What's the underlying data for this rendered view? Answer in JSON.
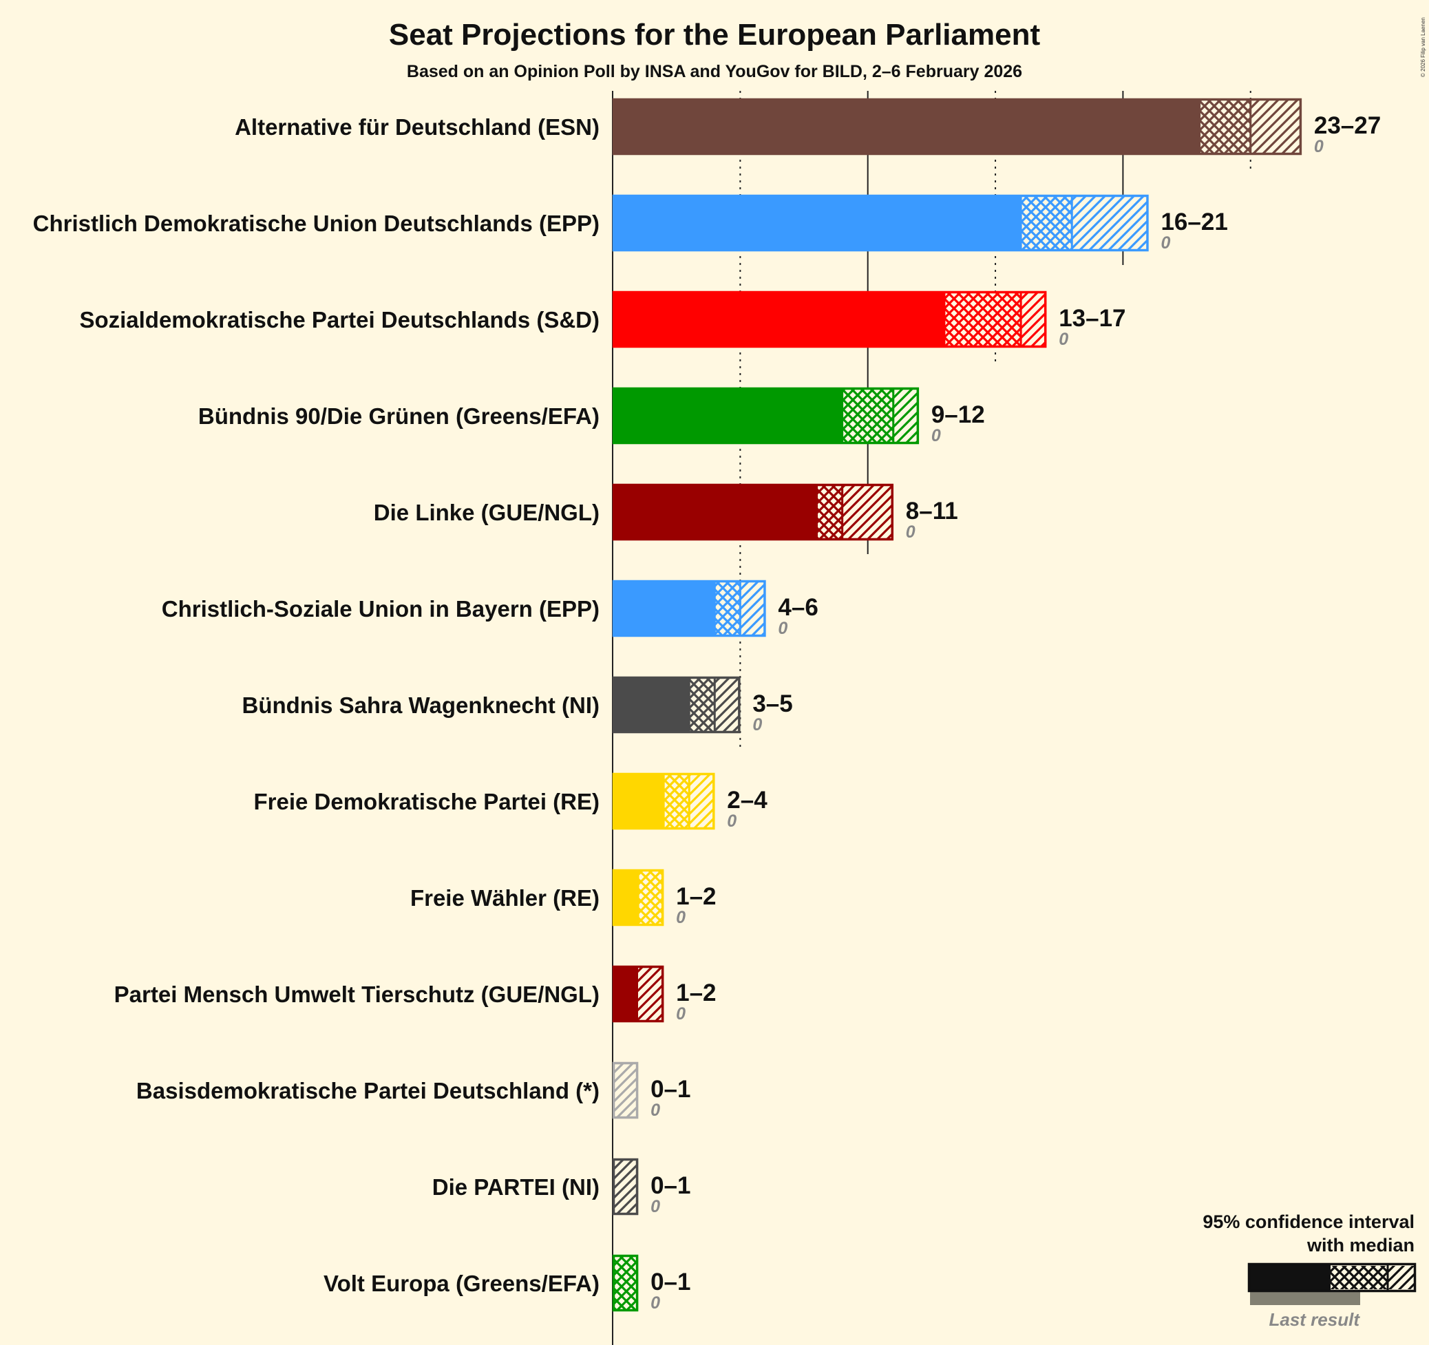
{
  "chart_data": {
    "type": "bar",
    "orientation": "horizontal",
    "title": "Seat Projections for the European Parliament",
    "subtitle": "Based on an Opinion Poll by INSA and YouGov for BILD, 2–6 February 2026",
    "xlim": [
      0,
      27
    ],
    "gridlines": {
      "solid": [
        0,
        10,
        20
      ],
      "dotted": [
        5,
        15,
        25
      ]
    },
    "parties": [
      {
        "name": "Alternative für Deutschland (ESN)",
        "low": 23,
        "median": 25,
        "high": 27,
        "range_label": "23–27",
        "last": "0",
        "color": "#70463C"
      },
      {
        "name": "Christlich Demokratische Union Deutschlands (EPP)",
        "low": 16,
        "median": 18,
        "high": 21,
        "range_label": "16–21",
        "last": "0",
        "color": "#3A9AFF"
      },
      {
        "name": "Sozialdemokratische Partei Deutschlands (S&D)",
        "low": 13,
        "median": 16,
        "high": 17,
        "range_label": "13–17",
        "last": "0",
        "color": "#FF0000"
      },
      {
        "name": "Bündnis 90/Die Grünen (Greens/EFA)",
        "low": 9,
        "median": 11,
        "high": 12,
        "range_label": "9–12",
        "last": "0",
        "color": "#009900"
      },
      {
        "name": "Die Linke (GUE/NGL)",
        "low": 8,
        "median": 9,
        "high": 11,
        "range_label": "8–11",
        "last": "0",
        "color": "#990000"
      },
      {
        "name": "Christlich-Soziale Union in Bayern (EPP)",
        "low": 4,
        "median": 5,
        "high": 6,
        "range_label": "4–6",
        "last": "0",
        "color": "#3A9AFF"
      },
      {
        "name": "Bündnis Sahra Wagenknecht (NI)",
        "low": 3,
        "median": 4,
        "high": 5,
        "range_label": "3–5",
        "last": "0",
        "color": "#4B4B4B"
      },
      {
        "name": "Freie Demokratische Partei (RE)",
        "low": 2,
        "median": 3,
        "high": 4,
        "range_label": "2–4",
        "last": "0",
        "color": "#FFD700"
      },
      {
        "name": "Freie Wähler (RE)",
        "low": 1,
        "median": 2,
        "high": 2,
        "range_label": "1–2",
        "last": "0",
        "color": "#FFD700"
      },
      {
        "name": "Partei Mensch Umwelt Tierschutz (GUE/NGL)",
        "low": 1,
        "median": 1,
        "high": 2,
        "range_label": "1–2",
        "last": "0",
        "color": "#990000"
      },
      {
        "name": "Basisdemokratische Partei Deutschland (*)",
        "low": 0,
        "median": 0,
        "high": 1,
        "range_label": "0–1",
        "last": "0",
        "color": "#AAAAAA"
      },
      {
        "name": "Die PARTEI (NI)",
        "low": 0,
        "median": 0,
        "high": 1,
        "range_label": "0–1",
        "last": "0",
        "color": "#4B4B4B"
      },
      {
        "name": "Volt Europa (Greens/EFA)",
        "low": 0,
        "median": 1,
        "high": 1,
        "range_label": "0–1",
        "last": "0",
        "color": "#009900"
      }
    ],
    "legend": {
      "line1": "95% confidence interval",
      "line2": "with median",
      "last_result": "Last result",
      "placement": "bottom-right"
    }
  },
  "copyright": "© 2026 Filip van Laenen"
}
